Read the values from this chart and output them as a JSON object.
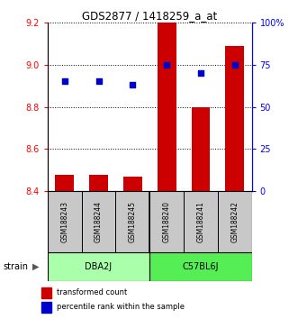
{
  "title": "GDS2877 / 1418259_a_at",
  "samples": [
    "GSM188243",
    "GSM188244",
    "GSM188245",
    "GSM188240",
    "GSM188241",
    "GSM188242"
  ],
  "group_labels": [
    "DBA2J",
    "C57BL6J"
  ],
  "transformed_count": [
    8.48,
    8.48,
    8.47,
    9.21,
    8.8,
    9.09
  ],
  "percentile_rank": [
    65,
    65,
    63,
    75,
    70,
    75
  ],
  "ylim_left": [
    8.4,
    9.2
  ],
  "ylim_right": [
    0,
    100
  ],
  "yticks_left": [
    8.4,
    8.6,
    8.8,
    9.0,
    9.2
  ],
  "yticks_right": [
    0,
    25,
    50,
    75,
    100
  ],
  "ytick_labels_right": [
    "0",
    "25",
    "50",
    "75",
    "100%"
  ],
  "bar_color": "#CC0000",
  "dot_color": "#0000CC",
  "bar_bottom": 8.4,
  "plot_bg": "#FFFFFF",
  "sample_area_bg": "#C8C8C8",
  "group1_color": "#AAFFAA",
  "group2_color": "#55EE55",
  "group_divider": 3,
  "legend_red_label": "transformed count",
  "legend_blue_label": "percentile rank within the sample",
  "strain_label": "strain"
}
